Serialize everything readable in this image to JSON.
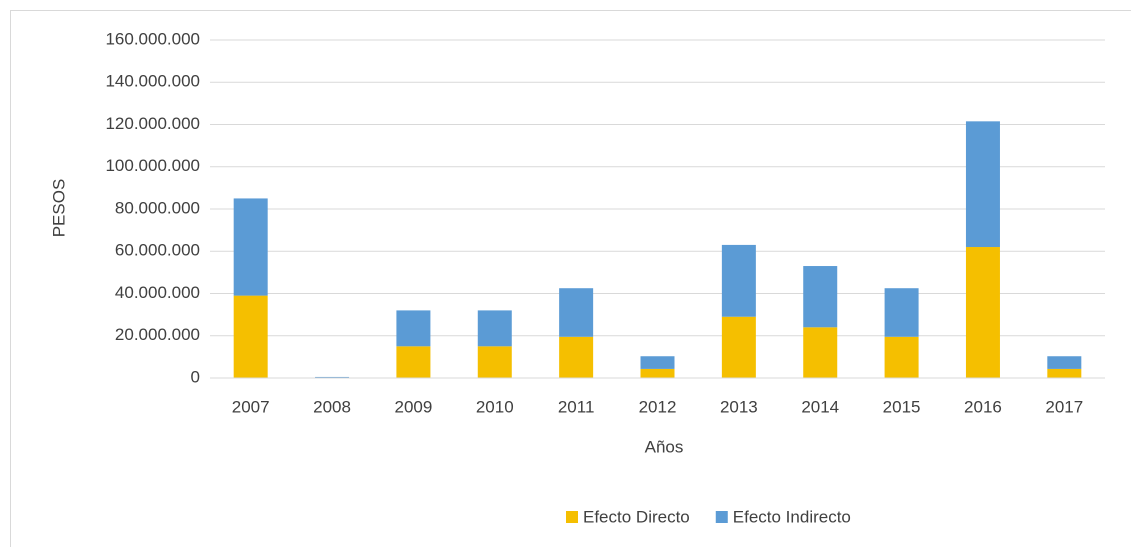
{
  "chart_data": {
    "type": "stacked_bar",
    "xlabel": "Años",
    "ylabel": "PESOS",
    "categories": [
      "2007",
      "2008",
      "2009",
      "2010",
      "2011",
      "2012",
      "2013",
      "2014",
      "2015",
      "2016",
      "2017"
    ],
    "series": [
      {
        "name": "Efecto Directo",
        "color": "#f5bf00",
        "values": [
          39000000,
          200000,
          15000000,
          15000000,
          19500000,
          4300000,
          29000000,
          24000000,
          19500000,
          62000000,
          4300000
        ]
      },
      {
        "name": "Efecto Indirecto",
        "color": "#5b9bd5",
        "values": [
          46000000,
          300000,
          17000000,
          17000000,
          23000000,
          6000000,
          34000000,
          29000000,
          23000000,
          59500000,
          6000000
        ]
      }
    ],
    "ylim": [
      0,
      160000000
    ],
    "yticks": [
      0,
      {
        "value": 20000000,
        "label": "20.000.000"
      },
      {
        "value": 40000000,
        "label": "40.000.000"
      },
      {
        "value": 60000000,
        "label": "60.000.000"
      },
      {
        "value": 80000000,
        "label": "80.000.000"
      },
      {
        "value": 100000000,
        "label": "100.000.000"
      },
      {
        "value": 120000000,
        "label": "120.000.000"
      },
      {
        "value": 140000000,
        "label": "140.000.000"
      },
      {
        "value": 160000000,
        "label": "160.000.000"
      }
    ],
    "grid": true,
    "legend": "bottom"
  }
}
